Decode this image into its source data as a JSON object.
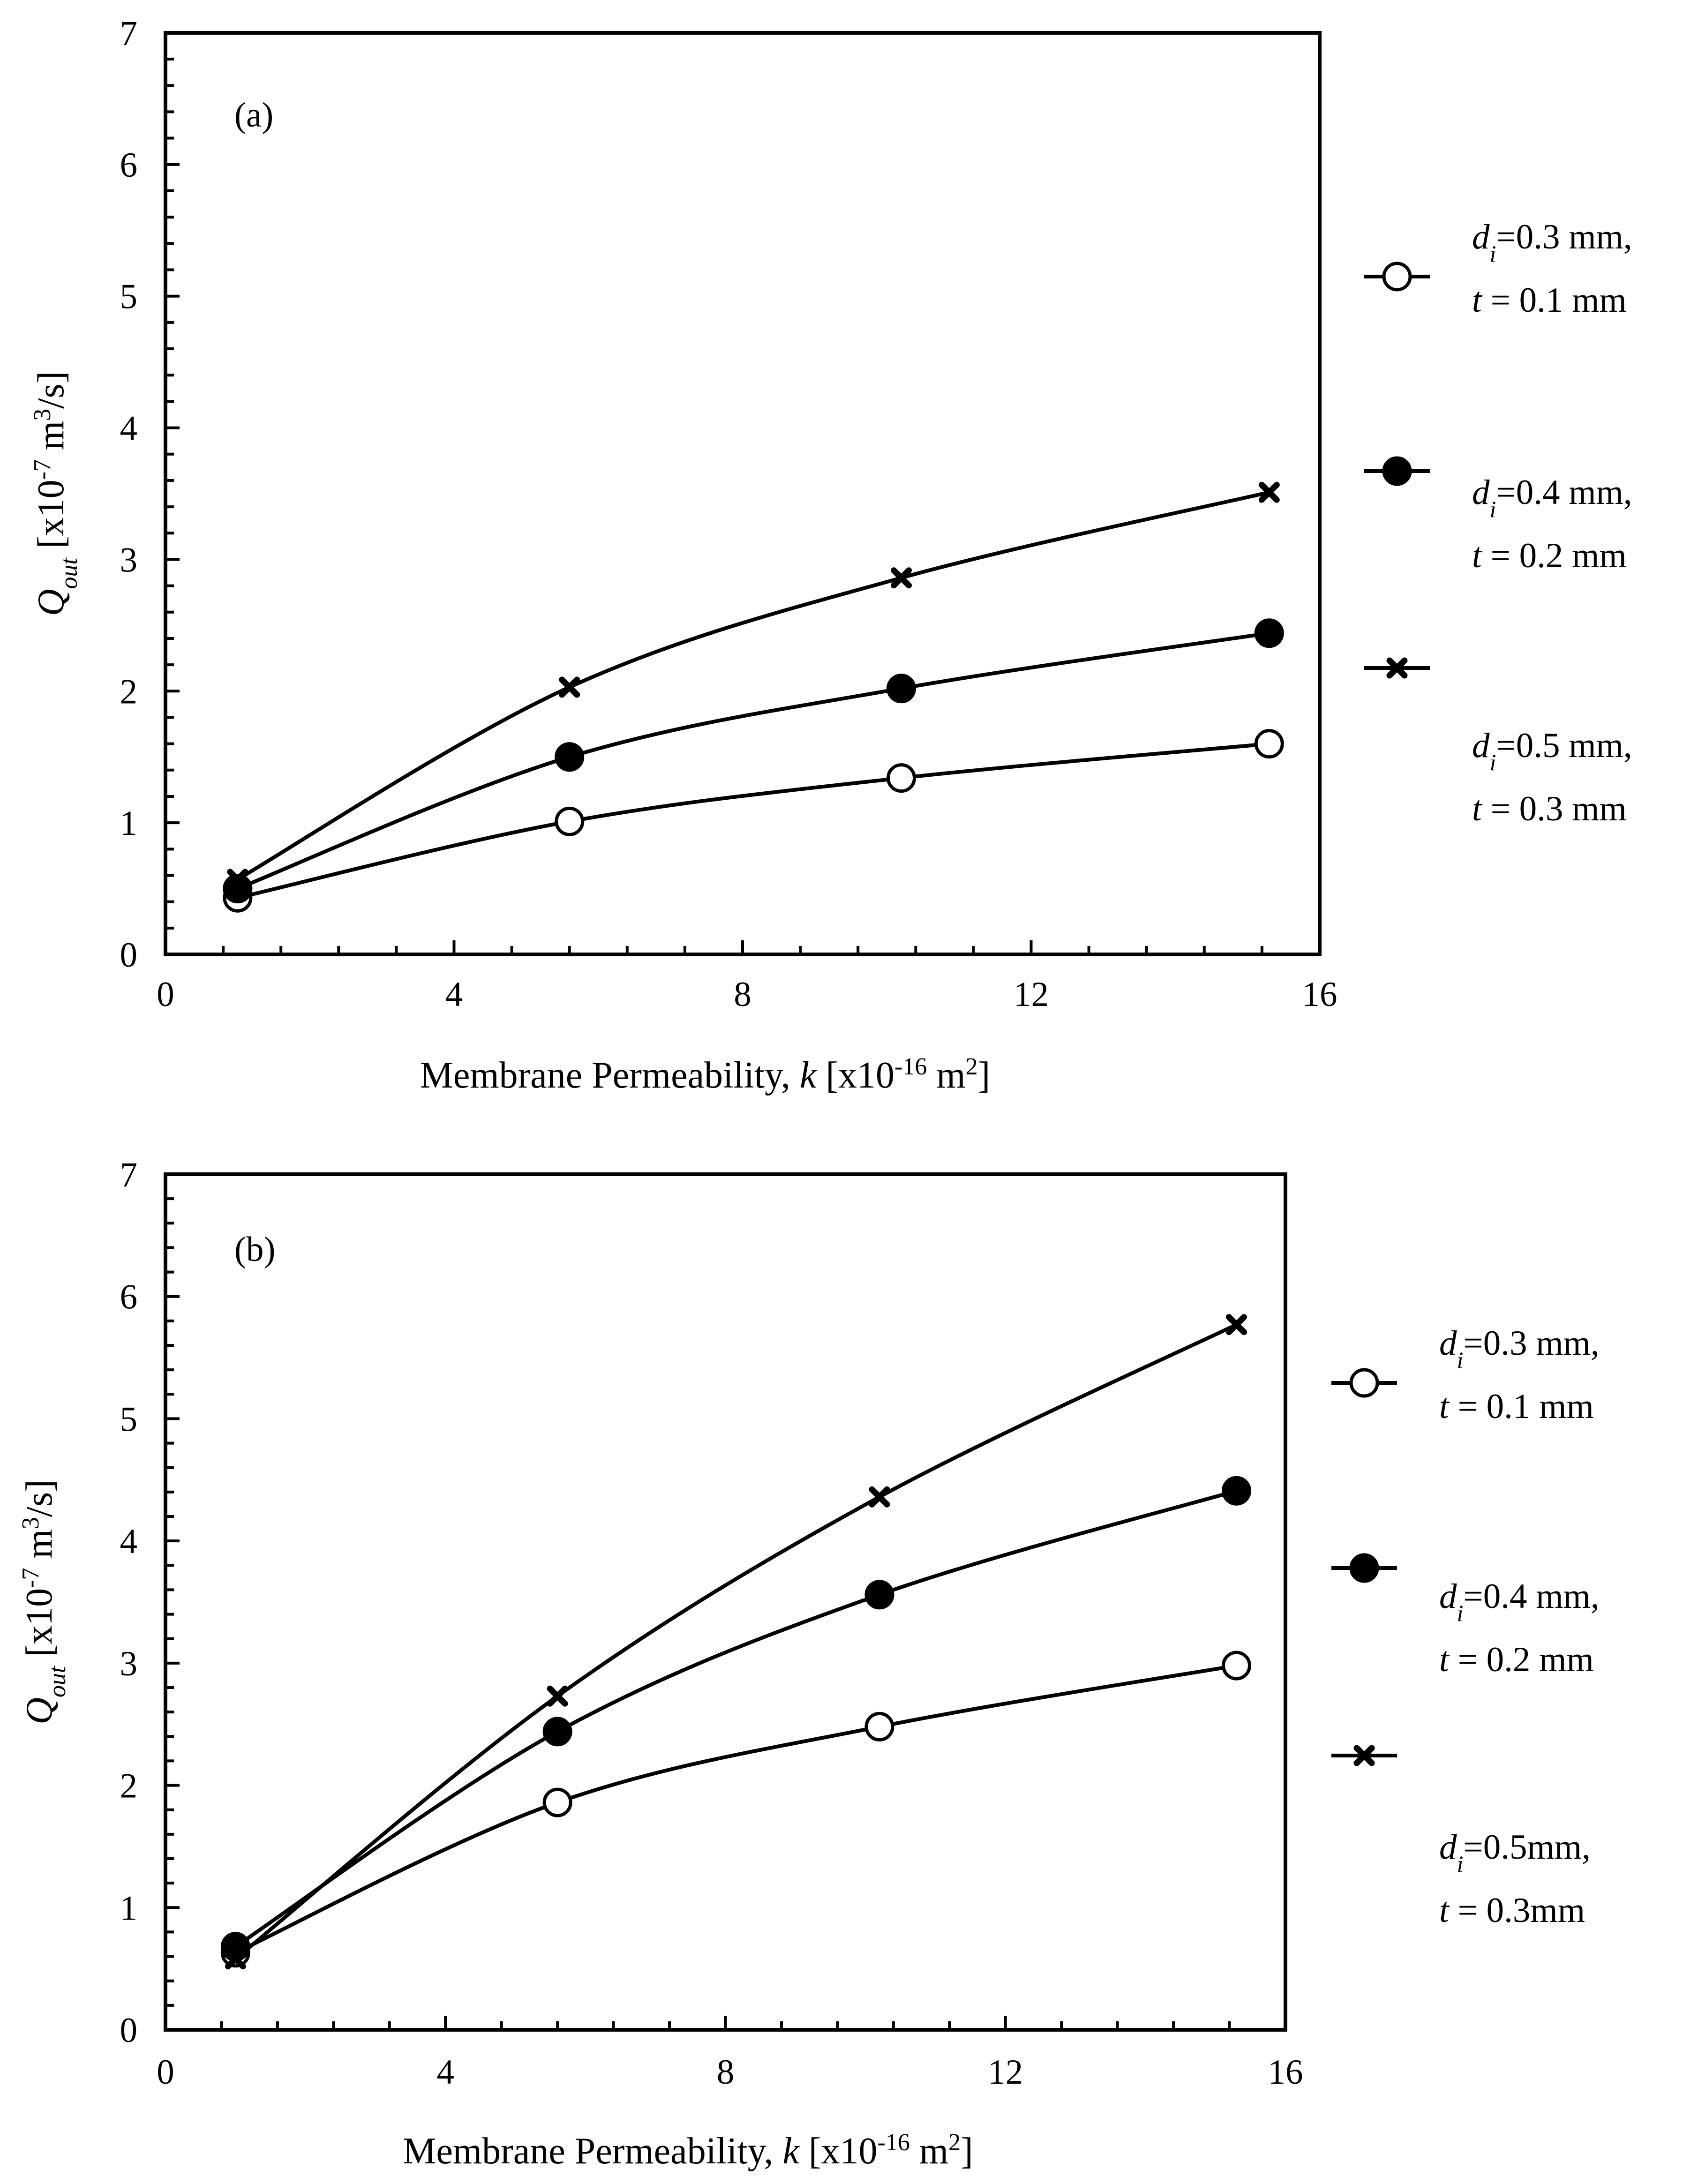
{
  "chart_data": [
    {
      "panel": "(a)",
      "type": "line",
      "xlabel": "Membrane Permeability, k [x10-16 m2]",
      "ylabel": "Qout [x10-7 m3/s]",
      "xlim": [
        0,
        16
      ],
      "ylim": [
        0,
        7
      ],
      "x_ticks": [
        "0",
        "4",
        "8",
        "12",
        "16"
      ],
      "y_ticks": [
        "0",
        "1",
        "2",
        "3",
        "4",
        "5",
        "6",
        "7"
      ],
      "grid": false,
      "legend_position": "right",
      "x": [
        1.0,
        5.6,
        10.2,
        15.3
      ],
      "series": [
        {
          "name": "di=0.3 mm, t = 0.1 mm",
          "marker": "open-circle",
          "values": [
            0.43,
            1.01,
            1.34,
            1.6
          ]
        },
        {
          "name": "di=0.4 mm, t = 0.2 mm",
          "marker": "filled-circle",
          "values": [
            0.5,
            1.5,
            2.02,
            2.44
          ]
        },
        {
          "name": "di=0.5 mm, t = 0.3 mm",
          "marker": "cross",
          "values": [
            0.57,
            2.03,
            2.86,
            3.51
          ]
        }
      ],
      "legend": [
        {
          "line1": {
            "pre": "d",
            "sub": "i",
            "post": "=0.3 mm,"
          },
          "line2": {
            "pre": "t",
            "post": " = 0.1 mm"
          }
        },
        {
          "line1": {
            "pre": "d",
            "sub": "i",
            "post": "=0.4 mm,"
          },
          "line2": {
            "pre": "t",
            "post": " = 0.2 mm"
          }
        },
        {
          "line1": {
            "pre": "d",
            "sub": "i",
            "post": "=0.5 mm,"
          },
          "line2": {
            "pre": "t",
            "post": " = 0.3 mm"
          }
        }
      ]
    },
    {
      "panel": "(b)",
      "type": "line",
      "xlabel": "Membrane Permeability, k [x10-16 m2]",
      "ylabel": "Qout [x10-7 m3/s]",
      "xlim": [
        0,
        16
      ],
      "ylim": [
        0,
        7
      ],
      "x_ticks": [
        "0",
        "4",
        "8",
        "12",
        "16"
      ],
      "y_ticks": [
        "0",
        "1",
        "2",
        "3",
        "4",
        "5",
        "6",
        "7"
      ],
      "grid": false,
      "legend_position": "right",
      "x": [
        1.0,
        5.6,
        10.2,
        15.3
      ],
      "series": [
        {
          "name": "di=0.3 mm, t = 0.1 mm",
          "marker": "open-circle",
          "values": [
            0.63,
            1.86,
            2.48,
            2.98
          ]
        },
        {
          "name": "di=0.4 mm, t = 0.2 mm",
          "marker": "filled-circle",
          "values": [
            0.68,
            2.44,
            3.56,
            4.41
          ]
        },
        {
          "name": "di=0.5mm, t = 0.3mm",
          "marker": "cross",
          "values": [
            0.58,
            2.73,
            4.36,
            5.77
          ]
        }
      ],
      "legend": [
        {
          "line1": {
            "pre": "d",
            "sub": "i",
            "post": "=0.3 mm,"
          },
          "line2": {
            "pre": "t",
            "post": " = 0.1 mm"
          }
        },
        {
          "line1": {
            "pre": "d",
            "sub": "i",
            "post": "=0.4 mm,"
          },
          "line2": {
            "pre": "t",
            "post": " = 0.2 mm"
          }
        },
        {
          "line1": {
            "pre": "d",
            "sub": "i",
            "post": "=0.5mm,"
          },
          "line2": {
            "pre": "t",
            "post": " = 0.3mm"
          }
        }
      ]
    }
  ],
  "axis_text": {
    "x_main": "Membrane Permeability, ",
    "x_var": "k",
    "x_unit_pre": " [x10",
    "x_exp": "-16",
    "x_unit_mid": " m",
    "x_unit_exp": "2",
    "x_unit_post": "]",
    "y_var": "Q",
    "y_sub": "out",
    "y_unit_pre": " [x10",
    "y_exp": "-7",
    "y_unit_mid": " m",
    "y_unit_exp": "3",
    "y_unit_post": "/s]"
  }
}
